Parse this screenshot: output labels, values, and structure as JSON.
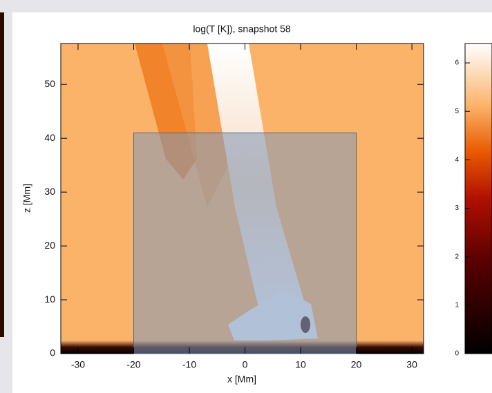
{
  "chart_data": {
    "type": "image",
    "title": "log(T [K]), snapshot 58",
    "xlabel": "x [Mm]",
    "ylabel": "z [Mm]",
    "xlim": [
      -33.1,
      32.1
    ],
    "xticks": [
      -30,
      -20,
      -10,
      0,
      10,
      20,
      30
    ],
    "ylim": [
      0,
      57.6
    ],
    "yticks": [
      0,
      10,
      20,
      30,
      40,
      50
    ],
    "selection_box": {
      "xlim": [
        -20,
        20
      ],
      "ylim": [
        0,
        41
      ]
    },
    "colorbar": {
      "lim": [
        0,
        6.4
      ],
      "ticks": [
        0,
        1,
        2,
        3,
        4,
        5,
        6
      ]
    }
  }
}
